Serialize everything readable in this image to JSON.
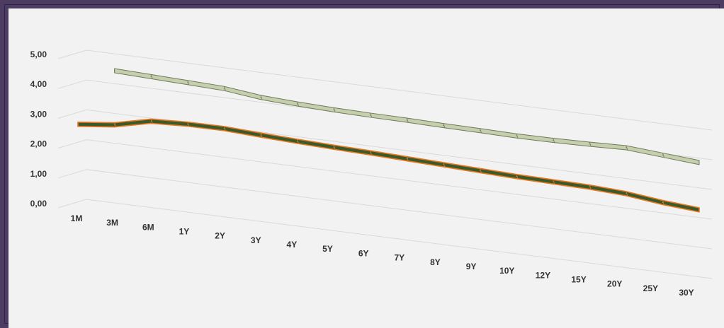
{
  "chart_data": {
    "type": "line",
    "title": "",
    "xlabel": "",
    "ylabel": "",
    "categories": [
      "1M",
      "3M",
      "6M",
      "1Y",
      "2Y",
      "3Y",
      "4Y",
      "5Y",
      "6Y",
      "7Y",
      "8Y",
      "9Y",
      "10Y",
      "12Y",
      "15Y",
      "20Y",
      "25Y",
      "30Y"
    ],
    "y_ticks": [
      "0,00",
      "1,00",
      "2,00",
      "3,00",
      "4,00",
      "5,00"
    ],
    "ylim": [
      0,
      5
    ],
    "grid": true,
    "style": "3d-ribbon",
    "series": [
      {
        "color": "#c5cfae",
        "edge_color": "#6f7a5a",
        "values": [
          null,
          3.75,
          3.7,
          3.65,
          3.6,
          3.45,
          3.38,
          3.33,
          3.3,
          3.28,
          3.25,
          3.23,
          3.2,
          3.2,
          3.22,
          3.25,
          3.15,
          3.05
        ]
      },
      {
        "color": "#3b5a2a",
        "edge_color": "#e87722",
        "values": [
          1.9,
          2.03,
          2.3,
          2.35,
          2.35,
          2.28,
          2.22,
          2.17,
          2.13,
          2.08,
          2.03,
          1.98,
          1.93,
          1.9,
          1.87,
          1.8,
          1.65,
          1.55
        ]
      }
    ]
  }
}
